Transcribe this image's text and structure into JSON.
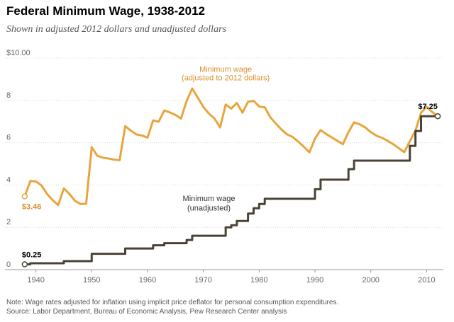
{
  "chart_data": {
    "type": "line",
    "title": "Federal Minimum Wage, 1938-2012",
    "subtitle": "Shown in adjusted 2012 dollars and unadjusted dollars",
    "xlabel": "",
    "ylabel": "",
    "xlim": [
      1937,
      2013
    ],
    "ylim": [
      0,
      10
    ],
    "y_ticks": [
      {
        "value": 0,
        "label": "0"
      },
      {
        "value": 2,
        "label": "2"
      },
      {
        "value": 4,
        "label": "4"
      },
      {
        "value": 6,
        "label": "6"
      },
      {
        "value": 8,
        "label": "8"
      },
      {
        "value": 10,
        "label": "$10.00"
      }
    ],
    "x_ticks": [
      {
        "value": 1940,
        "label": "1940"
      },
      {
        "value": 1950,
        "label": "1950"
      },
      {
        "value": 1960,
        "label": "1960"
      },
      {
        "value": 1970,
        "label": "1970"
      },
      {
        "value": 1980,
        "label": "1980"
      },
      {
        "value": 1990,
        "label": "1990"
      },
      {
        "value": 2000,
        "label": "2000"
      },
      {
        "value": 2010,
        "label": "2010"
      }
    ],
    "grid": "horizontal",
    "series": [
      {
        "name": "Minimum wage (adjusted to 2012 dollars)",
        "label_lines": [
          "Minimum wage",
          "(adjusted to 2012 dollars)"
        ],
        "color": "#e8a53d",
        "step": false,
        "x": [
          1938,
          1939,
          1940,
          1941,
          1942,
          1943,
          1944,
          1945,
          1946,
          1947,
          1948,
          1949,
          1950,
          1951,
          1952,
          1953,
          1954,
          1955,
          1956,
          1957,
          1958,
          1959,
          1960,
          1961,
          1962,
          1963,
          1964,
          1965,
          1966,
          1967,
          1968,
          1969,
          1970,
          1971,
          1972,
          1973,
          1974,
          1975,
          1976,
          1977,
          1978,
          1979,
          1980,
          1981,
          1982,
          1983,
          1984,
          1985,
          1986,
          1987,
          1988,
          1989,
          1990,
          1991,
          1992,
          1993,
          1994,
          1995,
          1996,
          1997,
          1998,
          1999,
          2000,
          2001,
          2002,
          2003,
          2004,
          2005,
          2006,
          2007,
          2008,
          2009,
          2010,
          2011,
          2012
        ],
        "values": [
          3.46,
          4.19,
          4.17,
          3.98,
          3.58,
          3.28,
          3.05,
          3.84,
          3.58,
          3.25,
          3.1,
          3.11,
          5.79,
          5.38,
          5.29,
          5.25,
          5.2,
          5.17,
          6.78,
          6.57,
          6.39,
          6.34,
          6.24,
          7.05,
          6.99,
          7.52,
          7.43,
          7.31,
          7.14,
          7.97,
          8.56,
          8.13,
          7.69,
          7.37,
          7.14,
          6.72,
          7.8,
          7.61,
          7.88,
          7.42,
          7.93,
          7.98,
          7.71,
          7.67,
          7.2,
          6.9,
          6.62,
          6.39,
          6.27,
          6.05,
          5.81,
          5.54,
          6.19,
          6.6,
          6.41,
          6.25,
          6.09,
          5.93,
          6.5,
          6.96,
          6.87,
          6.72,
          6.5,
          6.33,
          6.23,
          6.09,
          5.93,
          5.74,
          5.55,
          6.07,
          6.57,
          7.42,
          7.69,
          7.45,
          7.25
        ],
        "end_labels": [
          {
            "x": 1938,
            "text": "$3.46",
            "position": "below"
          }
        ]
      },
      {
        "name": "Minimum wage (unadjusted)",
        "label_lines": [
          "Minimum wage",
          "(unadjusted)"
        ],
        "color": "#4a4335",
        "step": true,
        "x": [
          1938,
          1939,
          1940,
          1941,
          1942,
          1943,
          1944,
          1945,
          1946,
          1947,
          1948,
          1949,
          1950,
          1951,
          1952,
          1953,
          1954,
          1955,
          1956,
          1957,
          1958,
          1959,
          1960,
          1961,
          1962,
          1963,
          1964,
          1965,
          1966,
          1967,
          1968,
          1969,
          1970,
          1971,
          1972,
          1973,
          1974,
          1975,
          1976,
          1977,
          1978,
          1979,
          1980,
          1981,
          1982,
          1983,
          1984,
          1985,
          1986,
          1987,
          1988,
          1989,
          1990,
          1991,
          1992,
          1993,
          1994,
          1995,
          1996,
          1997,
          1998,
          1999,
          2000,
          2001,
          2002,
          2003,
          2004,
          2005,
          2006,
          2007,
          2008,
          2009,
          2010,
          2011,
          2012
        ],
        "values": [
          0.25,
          0.3,
          0.3,
          0.3,
          0.3,
          0.3,
          0.3,
          0.4,
          0.4,
          0.4,
          0.4,
          0.4,
          0.75,
          0.75,
          0.75,
          0.75,
          0.75,
          0.75,
          1.0,
          1.0,
          1.0,
          1.0,
          1.0,
          1.15,
          1.15,
          1.25,
          1.25,
          1.25,
          1.25,
          1.4,
          1.6,
          1.6,
          1.6,
          1.6,
          1.6,
          1.6,
          2.0,
          2.1,
          2.3,
          2.3,
          2.65,
          2.9,
          3.1,
          3.35,
          3.35,
          3.35,
          3.35,
          3.35,
          3.35,
          3.35,
          3.35,
          3.35,
          3.8,
          4.25,
          4.25,
          4.25,
          4.25,
          4.25,
          4.75,
          5.15,
          5.15,
          5.15,
          5.15,
          5.15,
          5.15,
          5.15,
          5.15,
          5.15,
          5.15,
          5.85,
          6.55,
          7.25,
          7.25,
          7.25,
          7.25
        ],
        "end_labels": [
          {
            "x": 1938,
            "text": "$0.25",
            "position": "above"
          },
          {
            "x": 2012,
            "text": "$7.25",
            "position": "above"
          }
        ]
      }
    ]
  },
  "footer": {
    "note": "Note: Wage rates adjusted for inflation using implicit price deflator for personal consumption expenditures.",
    "source": "Source: Labor Department, Bureau of Economic Analysis, Pew Research Center analysis"
  }
}
